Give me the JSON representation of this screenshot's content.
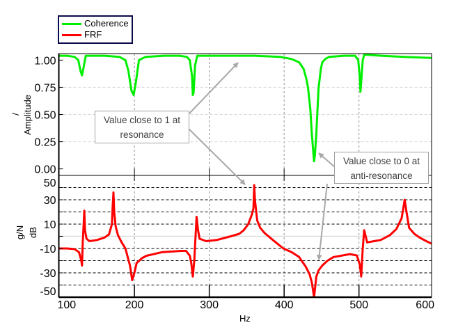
{
  "legend": {
    "items": [
      {
        "label": "Coherence",
        "color": "#00ee00"
      },
      {
        "label": "FRF",
        "color": "#ff0000"
      }
    ]
  },
  "annotations": [
    {
      "line1": "Value close to 1 at",
      "line2": "resonance"
    },
    {
      "line1": "Value close to 0 at",
      "line2": "anti-resonance"
    }
  ],
  "chart_data": [
    {
      "type": "line",
      "ylabel_unit": "/",
      "ylabel": "Amplitude",
      "xlim": [
        99,
        597
      ],
      "ylim": [
        -0.06,
        1.06
      ],
      "yticks": [
        "1.00",
        "0.75",
        "0.50",
        "0.25",
        "0.00"
      ],
      "grid": true,
      "series": [
        {
          "name": "Coherence",
          "color": "#00ee00",
          "x": [
            99,
            110,
            120,
            125,
            128,
            130,
            132,
            135,
            140,
            160,
            180,
            188,
            192,
            196,
            199,
            202,
            206,
            215,
            240,
            260,
            270,
            274,
            277,
            278,
            279,
            281,
            284,
            290,
            320,
            360,
            395,
            410,
            420,
            426,
            430,
            432,
            435,
            437,
            439,
            440,
            441,
            443,
            446,
            449,
            451,
            455,
            460,
            480,
            495,
            499,
            501,
            502,
            503,
            505,
            507,
            510,
            530,
            560,
            597
          ],
          "values": [
            1.04,
            1.04,
            1.03,
            1.0,
            0.9,
            0.86,
            0.93,
            1.04,
            1.04,
            1.04,
            1.03,
            1.0,
            0.9,
            0.72,
            0.68,
            0.8,
            1.0,
            1.03,
            1.04,
            1.04,
            1.03,
            1.0,
            0.85,
            0.68,
            0.7,
            0.95,
            1.04,
            1.04,
            1.04,
            1.04,
            1.03,
            1.01,
            0.98,
            0.92,
            0.82,
            0.74,
            0.55,
            0.32,
            0.15,
            0.07,
            0.12,
            0.32,
            0.74,
            0.92,
            0.98,
            1.01,
            1.03,
            1.04,
            1.04,
            1.0,
            0.85,
            0.71,
            0.8,
            1.0,
            1.05,
            1.05,
            1.04,
            1.03,
            1.02
          ]
        }
      ]
    },
    {
      "type": "line",
      "ylabel_unit": "g/N",
      "ylabel": "dB",
      "xlabel": "Hz",
      "xlim": [
        99,
        597
      ],
      "ylim": [
        -50,
        50
      ],
      "xticks": [
        "100",
        "200",
        "300",
        "400",
        "500",
        "600"
      ],
      "yticks": [
        "50",
        "30",
        "10",
        "-10",
        "-30",
        "-50"
      ],
      "grid": true,
      "series": [
        {
          "name": "FRF",
          "color": "#ff0000",
          "x": [
            99,
            110,
            120,
            126,
            129,
            130,
            131,
            133,
            134,
            136,
            140,
            150,
            160,
            166,
            170,
            171,
            172,
            173,
            175,
            178,
            183,
            188,
            194,
            197,
            200,
            203,
            210,
            216,
            237,
            262,
            269,
            274,
            276,
            278,
            280,
            283,
            285,
            287,
            296,
            310,
            327,
            340,
            346,
            352,
            357,
            359,
            360,
            361,
            364,
            368,
            374,
            385,
            399,
            410,
            420,
            429,
            434,
            437,
            440,
            443,
            446,
            451,
            458,
            466,
            488,
            497,
            501,
            503,
            505,
            507,
            511,
            520,
            529,
            541,
            550,
            557,
            559,
            561,
            563,
            567,
            574,
            581,
            590,
            597
          ],
          "values": [
            -10,
            -10,
            -10.5,
            -13,
            -20,
            -24,
            -5,
            21,
            5,
            -2,
            -4,
            -3,
            -1,
            1.5,
            10,
            25,
            36,
            20,
            8,
            1,
            -5,
            -10,
            -24,
            -36,
            -30,
            -22,
            -18,
            -16,
            -13,
            -12,
            -12,
            -16,
            -22,
            -33,
            -20,
            16,
            5,
            -2,
            -4,
            -3,
            -0.3,
            2,
            5,
            10,
            18,
            23,
            42,
            30,
            13,
            7,
            2.6,
            -3,
            -10,
            -13,
            -17,
            -25,
            -31,
            -38,
            -50,
            -33,
            -28,
            -24,
            -20,
            -17,
            -14.6,
            -15.7,
            -23,
            -33,
            -10,
            5,
            -5,
            -4,
            -3,
            0.8,
            6,
            15,
            22,
            30,
            22,
            7,
            2,
            -1,
            -4,
            -6
          ]
        }
      ]
    }
  ]
}
